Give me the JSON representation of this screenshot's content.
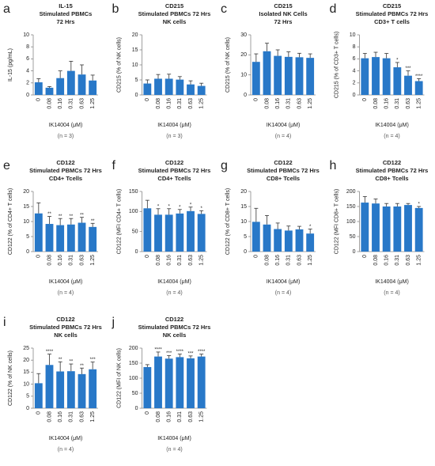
{
  "chart_data": [
    {
      "type": "bar",
      "panel_label": "a",
      "title": [
        "IL-15",
        "Stimulated PBMCs",
        "72 Hrs"
      ],
      "ylabel": "IL-15 (pg/mL)",
      "xlabel": "IK14004 (μM)",
      "note": "(n = 3)",
      "categories": [
        "0",
        "0.08",
        "0.16",
        "0.31",
        "0.63",
        "1.25"
      ],
      "values": [
        2.1,
        1.2,
        2.8,
        4.0,
        3.4,
        2.4
      ],
      "errors": [
        0.6,
        0.2,
        1.2,
        1.6,
        1.6,
        0.9
      ],
      "color": "#2878c8",
      "ylim": [
        0,
        10
      ],
      "yticks": [
        0,
        2,
        4,
        6,
        8,
        10
      ]
    },
    {
      "type": "bar",
      "panel_label": "b",
      "title": [
        "CD215",
        "Stimulated PBMCs 72 Hrs",
        "NK cells"
      ],
      "ylabel": "CD215 (% of NK cells)",
      "xlabel": "IK14004 (μM)",
      "note": "(n = 3)",
      "categories": [
        "0",
        "0.08",
        "0.16",
        "0.31",
        "0.63",
        "1.25"
      ],
      "values": [
        3.8,
        5.4,
        5.4,
        5.1,
        3.5,
        3.0
      ],
      "errors": [
        1.2,
        1.4,
        1.5,
        1.0,
        1.2,
        0.9
      ],
      "color": "#2878c8",
      "ylim": [
        0,
        20
      ],
      "yticks": [
        0,
        5,
        10,
        15,
        20
      ]
    },
    {
      "type": "bar",
      "panel_label": "c",
      "title": [
        "CD215",
        "Isolated NK Cells",
        "72 Hrs"
      ],
      "ylabel": "CD215 (% of NK cells)",
      "xlabel": "IK14004 (μM)",
      "note": "(n = 4)",
      "categories": [
        "0",
        "0.08",
        "0.16",
        "0.31",
        "0.63",
        "1.25"
      ],
      "values": [
        16.5,
        21.8,
        19.5,
        19.0,
        18.8,
        18.5
      ],
      "errors": [
        4,
        4,
        3,
        2.5,
        2,
        2
      ],
      "color": "#2878c8",
      "ylim": [
        0,
        30
      ],
      "yticks": [
        0,
        10,
        20,
        30
      ]
    },
    {
      "type": "bar",
      "panel_label": "d",
      "title": [
        "CD215",
        "Stimulated PBMCs 72 Hrs",
        "CD3+ T cells"
      ],
      "ylabel": "CD215 (% of CD3+ T cells)",
      "xlabel": "IK14004 (μM)",
      "note": "(n = 4)",
      "categories": [
        "0",
        "0.08",
        "0.16",
        "0.31",
        "0.63",
        "1.25"
      ],
      "values": [
        6.1,
        6.3,
        6.1,
        4.6,
        3.2,
        2.3
      ],
      "errors": [
        0.8,
        0.8,
        0.8,
        0.8,
        0.8,
        0.4
      ],
      "annotations": [
        null,
        null,
        null,
        "*",
        "***",
        "****"
      ],
      "color": "#2878c8",
      "ylim": [
        0,
        10
      ],
      "yticks": [
        0,
        2,
        4,
        6,
        8,
        10
      ]
    },
    {
      "type": "bar",
      "panel_label": "e",
      "title": [
        "CD122",
        "Stimulated PBMCs 72 Hrs",
        "CD4+ Tcells"
      ],
      "ylabel": "CD122 (% of CD4+ T cells)",
      "xlabel": "IK14004 (μM)",
      "note": "(n = 4)",
      "categories": [
        "0",
        "0.08",
        "0.16",
        "0.31",
        "0.63",
        "1.25"
      ],
      "values": [
        12.7,
        9.2,
        8.8,
        9.0,
        9.6,
        8.2
      ],
      "errors": [
        3.5,
        2.5,
        2.2,
        2.0,
        1.8,
        1.2
      ],
      "annotations": [
        null,
        "**",
        "**",
        "**",
        "**",
        "**"
      ],
      "color": "#2878c8",
      "ylim": [
        0,
        20
      ],
      "yticks": [
        0,
        5,
        10,
        15,
        20
      ]
    },
    {
      "type": "bar",
      "panel_label": "f",
      "title": [
        "CD122",
        "Stimulated PBMCs 72 Hrs",
        "CD4+ Tcells"
      ],
      "ylabel": "CD122 (MFI CD4+ T cells)",
      "xlabel": "IK14004 (μM)",
      "note": "(n = 4)",
      "categories": [
        "0",
        "0.08",
        "0.16",
        "0.31",
        "0.63",
        "1.25"
      ],
      "values": [
        108,
        92,
        92,
        95,
        101,
        94
      ],
      "errors": [
        20,
        15,
        15,
        10,
        10,
        8
      ],
      "annotations": [
        null,
        "*",
        "*",
        "*",
        "*",
        "*"
      ],
      "color": "#2878c8",
      "ylim": [
        0,
        150
      ],
      "yticks": [
        0,
        50,
        100,
        150
      ]
    },
    {
      "type": "bar",
      "panel_label": "g",
      "title": [
        "CD122",
        "Stimulated PBMCs 72 Hrs",
        "CD8+ Tcells"
      ],
      "ylabel": "CD122 (% of CD8+ T cells)",
      "xlabel": "IK14004 (μM)",
      "note": "(n = 4)",
      "categories": [
        "0",
        "0.08",
        "0.16",
        "0.31",
        "0.63",
        "1.25"
      ],
      "values": [
        9.9,
        9.0,
        7.5,
        7.0,
        7.4,
        6.0
      ],
      "errors": [
        4.5,
        3,
        2,
        1.5,
        1.0,
        1.5
      ],
      "annotations": [
        null,
        null,
        null,
        null,
        null,
        "*"
      ],
      "color": "#2878c8",
      "ylim": [
        0,
        20
      ],
      "yticks": [
        0,
        5,
        10,
        15,
        20
      ]
    },
    {
      "type": "bar",
      "panel_label": "h",
      "title": [
        "CD122",
        "Stimulated PBMCs 72 Hrs",
        "CD8+ Tcells"
      ],
      "ylabel": "CD122 (MFI CD8+ T cells)",
      "xlabel": "IK14004 (μM)",
      "note": "(n = 4)",
      "categories": [
        "0",
        "0.08",
        "0.16",
        "0.31",
        "0.63",
        "1.25"
      ],
      "values": [
        163,
        160,
        150,
        150,
        155,
        145
      ],
      "errors": [
        20,
        15,
        10,
        10,
        5,
        5
      ],
      "annotations": [
        null,
        null,
        null,
        null,
        null,
        "*"
      ],
      "color": "#2878c8",
      "ylim": [
        0,
        200
      ],
      "yticks": [
        0,
        50,
        100,
        150,
        200
      ]
    },
    {
      "type": "bar",
      "panel_label": "i",
      "title": [
        "CD122",
        "Stimulated PBMCs 72 Hrs",
        "NK cells"
      ],
      "ylabel": "CD122 (% of NK cells)",
      "xlabel": "IK14004 (μM)",
      "note": "(n = 4)",
      "categories": [
        "0",
        "0.08",
        "0.16",
        "0.31",
        "0.63",
        "1.25"
      ],
      "values": [
        10.4,
        18.0,
        15.3,
        15.4,
        14.2,
        16.2
      ],
      "errors": [
        4,
        4.5,
        4,
        3,
        2.5,
        3
      ],
      "annotations": [
        null,
        "****",
        "**",
        "**",
        "**",
        "***"
      ],
      "color": "#2878c8",
      "ylim": [
        0,
        25
      ],
      "yticks": [
        0,
        5,
        10,
        15,
        20,
        25
      ]
    },
    {
      "type": "bar",
      "panel_label": "j",
      "title": [
        "CD122",
        "Stimulated PBMCs 72 Hrs",
        "NK cells"
      ],
      "ylabel": "CD122 (MFI of NK cells)",
      "xlabel": "IK14004 (μM)",
      "note": "(n = 4)",
      "categories": [
        "0",
        "0.08",
        "0.16",
        "0.31",
        "0.63",
        "1.25"
      ],
      "values": [
        137,
        172,
        165,
        170,
        166,
        172
      ],
      "errors": [
        8,
        15,
        10,
        10,
        8,
        8
      ],
      "annotations": [
        null,
        "****",
        "***",
        "****",
        "***",
        "****"
      ],
      "color": "#2878c8",
      "ylim": [
        0,
        200
      ],
      "yticks": [
        0,
        50,
        100,
        150,
        200
      ]
    }
  ]
}
